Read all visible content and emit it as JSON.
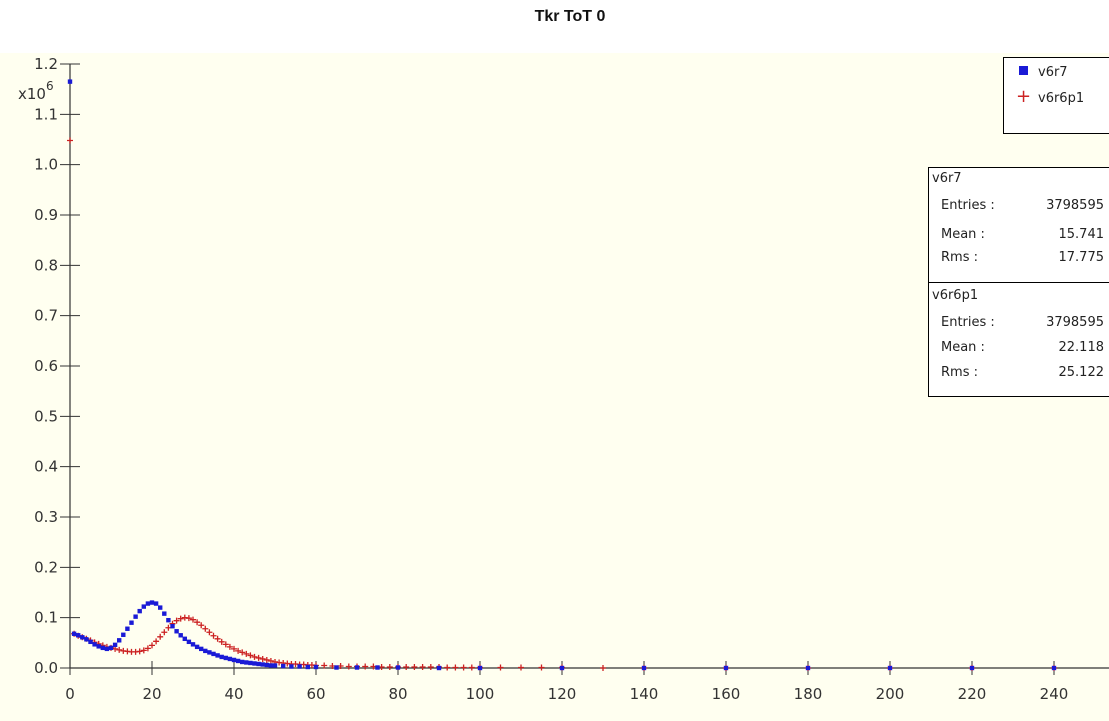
{
  "chart_data": {
    "type": "scatter",
    "title": "Tkr ToT 0",
    "y_multiplier_label": "x10",
    "y_multiplier_exp": "6",
    "xlim": [
      0,
      255
    ],
    "ylim": [
      0,
      1.2
    ],
    "x_ticks": [
      "0",
      "20",
      "40",
      "60",
      "80",
      "100",
      "120",
      "140",
      "160",
      "180",
      "200",
      "220",
      "240"
    ],
    "y_ticks": [
      "0.0",
      "0.1",
      "0.2",
      "0.3",
      "0.4",
      "0.5",
      "0.6",
      "0.7",
      "0.8",
      "0.9",
      "1.0",
      "1.1",
      "1.2"
    ],
    "legend_position": "top-right",
    "series": [
      {
        "name": "v6r7",
        "color": "#1a1ad6",
        "marker": "square",
        "points": [
          [
            0,
            1.165
          ],
          [
            1,
            0.068
          ],
          [
            2,
            0.065
          ],
          [
            3,
            0.061
          ],
          [
            4,
            0.057
          ],
          [
            5,
            0.052
          ],
          [
            6,
            0.047
          ],
          [
            7,
            0.043
          ],
          [
            8,
            0.04
          ],
          [
            9,
            0.038
          ],
          [
            10,
            0.04
          ],
          [
            11,
            0.046
          ],
          [
            12,
            0.055
          ],
          [
            13,
            0.066
          ],
          [
            14,
            0.078
          ],
          [
            15,
            0.09
          ],
          [
            16,
            0.102
          ],
          [
            17,
            0.113
          ],
          [
            18,
            0.122
          ],
          [
            19,
            0.128
          ],
          [
            20,
            0.13
          ],
          [
            21,
            0.128
          ],
          [
            22,
            0.12
          ],
          [
            23,
            0.108
          ],
          [
            24,
            0.095
          ],
          [
            25,
            0.083
          ],
          [
            26,
            0.073
          ],
          [
            27,
            0.065
          ],
          [
            28,
            0.058
          ],
          [
            29,
            0.052
          ],
          [
            30,
            0.047
          ],
          [
            31,
            0.042
          ],
          [
            32,
            0.038
          ],
          [
            33,
            0.034
          ],
          [
            34,
            0.031
          ],
          [
            35,
            0.028
          ],
          [
            36,
            0.025
          ],
          [
            37,
            0.022
          ],
          [
            38,
            0.02
          ],
          [
            39,
            0.018
          ],
          [
            40,
            0.016
          ],
          [
            41,
            0.014
          ],
          [
            42,
            0.012
          ],
          [
            43,
            0.011
          ],
          [
            44,
            0.01
          ],
          [
            45,
            0.009
          ],
          [
            46,
            0.008
          ],
          [
            47,
            0.007
          ],
          [
            48,
            0.006
          ],
          [
            49,
            0.005
          ],
          [
            50,
            0.005
          ],
          [
            52,
            0.004
          ],
          [
            54,
            0.003
          ],
          [
            56,
            0.003
          ],
          [
            58,
            0.002
          ],
          [
            60,
            0.002
          ],
          [
            65,
            0.001
          ],
          [
            70,
            0.001
          ],
          [
            75,
            0.001
          ],
          [
            80,
            0.001
          ],
          [
            90,
            0.0
          ],
          [
            100,
            0.0
          ],
          [
            120,
            0.0
          ],
          [
            140,
            0.0
          ],
          [
            160,
            0.0
          ],
          [
            180,
            0.0
          ],
          [
            200,
            0.0
          ],
          [
            220,
            0.0
          ],
          [
            240,
            0.0
          ],
          [
            255,
            0.0
          ]
        ]
      },
      {
        "name": "v6r6p1",
        "color": "#cc2222",
        "marker": "plus",
        "points": [
          [
            0,
            1.048
          ],
          [
            1,
            0.068
          ],
          [
            2,
            0.064
          ],
          [
            3,
            0.061
          ],
          [
            4,
            0.058
          ],
          [
            5,
            0.055
          ],
          [
            6,
            0.051
          ],
          [
            7,
            0.048
          ],
          [
            8,
            0.045
          ],
          [
            9,
            0.042
          ],
          [
            10,
            0.04
          ],
          [
            11,
            0.038
          ],
          [
            12,
            0.036
          ],
          [
            13,
            0.034
          ],
          [
            14,
            0.033
          ],
          [
            15,
            0.032
          ],
          [
            16,
            0.032
          ],
          [
            17,
            0.033
          ],
          [
            18,
            0.035
          ],
          [
            19,
            0.039
          ],
          [
            20,
            0.045
          ],
          [
            21,
            0.053
          ],
          [
            22,
            0.062
          ],
          [
            23,
            0.071
          ],
          [
            24,
            0.08
          ],
          [
            25,
            0.088
          ],
          [
            26,
            0.094
          ],
          [
            27,
            0.098
          ],
          [
            28,
            0.1
          ],
          [
            29,
            0.099
          ],
          [
            30,
            0.096
          ],
          [
            31,
            0.091
          ],
          [
            32,
            0.085
          ],
          [
            33,
            0.078
          ],
          [
            34,
            0.071
          ],
          [
            35,
            0.064
          ],
          [
            36,
            0.058
          ],
          [
            37,
            0.052
          ],
          [
            38,
            0.047
          ],
          [
            39,
            0.042
          ],
          [
            40,
            0.038
          ],
          [
            41,
            0.034
          ],
          [
            42,
            0.031
          ],
          [
            43,
            0.028
          ],
          [
            44,
            0.025
          ],
          [
            45,
            0.022
          ],
          [
            46,
            0.02
          ],
          [
            47,
            0.018
          ],
          [
            48,
            0.016
          ],
          [
            49,
            0.014
          ],
          [
            50,
            0.012
          ],
          [
            51,
            0.011
          ],
          [
            52,
            0.01
          ],
          [
            53,
            0.009
          ],
          [
            54,
            0.008
          ],
          [
            55,
            0.008
          ],
          [
            56,
            0.007
          ],
          [
            57,
            0.007
          ],
          [
            58,
            0.006
          ],
          [
            59,
            0.006
          ],
          [
            60,
            0.005
          ],
          [
            62,
            0.005
          ],
          [
            64,
            0.004
          ],
          [
            66,
            0.004
          ],
          [
            68,
            0.003
          ],
          [
            70,
            0.003
          ],
          [
            72,
            0.003
          ],
          [
            74,
            0.003
          ],
          [
            76,
            0.002
          ],
          [
            78,
            0.002
          ],
          [
            80,
            0.002
          ],
          [
            82,
            0.002
          ],
          [
            84,
            0.002
          ],
          [
            86,
            0.002
          ],
          [
            88,
            0.002
          ],
          [
            90,
            0.002
          ],
          [
            92,
            0.001
          ],
          [
            94,
            0.001
          ],
          [
            96,
            0.001
          ],
          [
            98,
            0.001
          ],
          [
            100,
            0.001
          ],
          [
            105,
            0.001
          ],
          [
            110,
            0.001
          ],
          [
            115,
            0.001
          ],
          [
            120,
            0.001
          ],
          [
            130,
            0.0
          ],
          [
            140,
            0.0
          ],
          [
            160,
            0.0
          ],
          [
            180,
            0.0
          ],
          [
            200,
            0.0
          ],
          [
            220,
            0.0
          ],
          [
            240,
            0.0
          ],
          [
            255,
            0.0
          ]
        ]
      }
    ]
  },
  "legend": {
    "items": [
      {
        "label": "v6r7"
      },
      {
        "label": "v6r6p1"
      }
    ]
  },
  "stats": [
    {
      "name": "v6r7",
      "entries_label": "Entries :",
      "entries": "3798595",
      "mean_label": "Mean :",
      "mean": "15.741",
      "rms_label": "Rms :",
      "rms": "17.775"
    },
    {
      "name": "v6r6p1",
      "entries_label": "Entries :",
      "entries": "3798595",
      "mean_label": "Mean :",
      "mean": "22.118",
      "rms_label": "Rms :",
      "rms": "25.122"
    }
  ],
  "colors": {
    "plot_background": "#fffff0",
    "axis": "#333333"
  }
}
